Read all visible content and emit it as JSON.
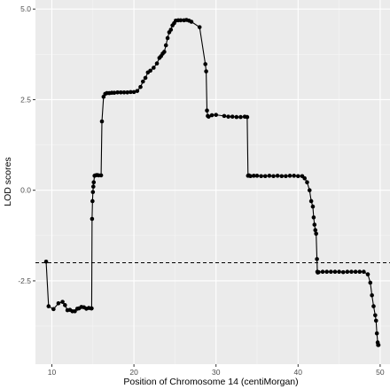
{
  "colors": {
    "panel": "#ebebeb",
    "grid_major": "#ffffff",
    "grid_minor": "#f5f5f5",
    "line": "#000000",
    "threshold": "#000000"
  },
  "chart_data": {
    "type": "line",
    "xlabel": "Position of Chromosome 14 (centiMorgan)",
    "ylabel": "LOD scores",
    "xlim": [
      8.0,
      51.2
    ],
    "ylim": [
      -4.8,
      5.25
    ],
    "x_ticks": [
      10,
      20,
      30,
      40,
      50
    ],
    "x_tick_labels": [
      "10",
      "20",
      "30",
      "40",
      "50"
    ],
    "y_ticks": [
      -2.5,
      0.0,
      2.5,
      5.0
    ],
    "y_tick_labels": [
      "-2.5",
      "0.0",
      "2.5",
      "5.0"
    ],
    "grid": true,
    "threshold": -2.0,
    "series": [
      {
        "x": [
          9.3,
          9.6,
          10.2,
          10.8,
          11.3,
          11.6,
          11.9,
          12.2,
          12.5,
          12.8,
          13.1,
          13.3,
          13.6,
          13.9,
          14.2,
          14.5,
          14.8,
          14.85,
          14.9,
          14.95,
          15.0,
          15.05,
          15.1,
          15.2,
          15.3,
          15.5,
          15.7,
          16.0,
          16.1,
          16.3,
          16.5,
          16.7,
          17.0,
          17.3,
          17.6,
          18.0,
          18.4,
          18.8,
          19.2,
          19.6,
          20.0,
          20.4,
          20.8,
          21.1,
          21.4,
          21.7,
          22.0,
          22.4,
          22.8,
          23.1,
          23.3,
          23.5,
          23.7,
          23.9,
          24.1,
          24.3,
          24.5,
          24.7,
          24.9,
          25.1,
          25.4,
          25.7,
          26.1,
          26.4,
          26.7,
          27.0,
          28.0,
          28.7,
          28.8,
          28.9,
          29.0,
          29.1,
          29.5,
          30.0,
          31.0,
          31.5,
          32.0,
          32.5,
          33.0,
          33.5,
          33.8,
          33.9,
          34.0,
          34.2,
          34.6,
          35.0,
          35.5,
          36.0,
          36.5,
          37.0,
          37.5,
          38.0,
          38.5,
          39.0,
          39.5,
          40.0,
          40.5,
          40.8,
          41.1,
          41.4,
          41.6,
          41.8,
          41.9,
          42.0,
          42.1,
          42.2,
          42.3,
          42.35,
          42.4,
          42.5,
          43.0,
          43.5,
          44.0,
          44.5,
          45.0,
          45.5,
          46.0,
          46.5,
          47.0,
          47.5,
          48.0,
          48.5,
          48.8,
          49.0,
          49.2,
          49.4,
          49.5,
          49.6,
          49.7,
          49.75,
          49.8
        ],
        "y": [
          -1.97,
          -3.2,
          -3.28,
          -3.12,
          -3.08,
          -3.17,
          -3.31,
          -3.3,
          -3.34,
          -3.34,
          -3.27,
          -3.26,
          -3.22,
          -3.23,
          -3.27,
          -3.25,
          -3.26,
          -3.26,
          -0.79,
          -0.3,
          -0.05,
          0.1,
          0.22,
          0.4,
          0.41,
          0.42,
          0.41,
          0.41,
          1.9,
          2.58,
          2.66,
          2.68,
          2.68,
          2.69,
          2.69,
          2.7,
          2.7,
          2.7,
          2.7,
          2.71,
          2.71,
          2.74,
          2.85,
          3.0,
          3.1,
          3.25,
          3.3,
          3.38,
          3.5,
          3.65,
          3.7,
          3.77,
          3.82,
          4.0,
          4.2,
          4.36,
          4.43,
          4.55,
          4.61,
          4.68,
          4.69,
          4.69,
          4.69,
          4.7,
          4.68,
          4.65,
          4.5,
          3.48,
          3.28,
          2.2,
          2.05,
          2.03,
          2.07,
          2.08,
          2.05,
          2.03,
          2.03,
          2.02,
          2.02,
          2.03,
          2.02,
          0.4,
          0.41,
          0.39,
          0.4,
          0.4,
          0.39,
          0.39,
          0.4,
          0.39,
          0.4,
          0.39,
          0.39,
          0.4,
          0.4,
          0.39,
          0.39,
          0.33,
          0.22,
          0.0,
          -0.3,
          -0.45,
          -0.75,
          -0.95,
          -1.1,
          -1.2,
          -1.9,
          -2.25,
          -2.27,
          -2.26,
          -2.25,
          -2.25,
          -2.25,
          -2.25,
          -2.25,
          -2.26,
          -2.25,
          -2.25,
          -2.25,
          -2.25,
          -2.25,
          -2.32,
          -2.55,
          -2.9,
          -3.2,
          -3.45,
          -3.6,
          -3.95,
          -4.2,
          -4.27,
          -4.27
        ]
      }
    ]
  }
}
